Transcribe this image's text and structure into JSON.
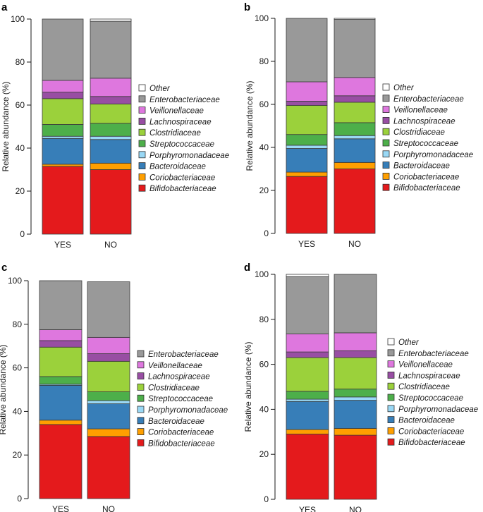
{
  "chart_data": [
    {
      "type": "bar",
      "panel_label": "a",
      "ylabel": "Relative abundance (%)",
      "ylim": [
        0,
        100
      ],
      "yticks": [
        "0",
        "20",
        "40",
        "60",
        "80",
        "100"
      ],
      "categories": [
        "YES",
        "NO"
      ],
      "stacked": true,
      "series": [
        {
          "name": "Bifidobacteriaceae",
          "color": "#e41a1c",
          "values": [
            31.5,
            30
          ]
        },
        {
          "name": "Coriobacteriaceae",
          "color": "#ff9f00",
          "values": [
            1.0,
            3.0
          ]
        },
        {
          "name": "Bacteroidaceae",
          "color": "#377eb8",
          "values": [
            12.0,
            11.0
          ]
        },
        {
          "name": "Porphyromonadaceae",
          "color": "#99d8f5",
          "values": [
            1.0,
            1.5
          ]
        },
        {
          "name": "Streptococcaceae",
          "color": "#4daf4a",
          "values": [
            5.5,
            6.0
          ]
        },
        {
          "name": "Clostridiaceae",
          "color": "#9bd13b",
          "values": [
            12.0,
            9.0
          ]
        },
        {
          "name": "Lachnospiraceae",
          "color": "#984ea3",
          "values": [
            3.0,
            3.5
          ]
        },
        {
          "name": "Veillonellaceae",
          "color": "#de77de",
          "values": [
            5.5,
            8.5
          ]
        },
        {
          "name": "Enterobacteriaceae",
          "color": "#999999",
          "values": [
            28.5,
            26.5
          ]
        },
        {
          "name": "Other",
          "color": "#ffffff",
          "values": [
            0,
            1.0
          ]
        }
      ]
    },
    {
      "type": "bar",
      "panel_label": "b",
      "ylabel": "Relative abundance (%)",
      "ylim": [
        0,
        100
      ],
      "yticks": [
        "0",
        "20",
        "40",
        "60",
        "80",
        "100"
      ],
      "categories": [
        "YES",
        "NO"
      ],
      "stacked": true,
      "series": [
        {
          "name": "Bifidobacteriaceae",
          "color": "#e41a1c",
          "values": [
            26.5,
            30
          ]
        },
        {
          "name": "Coriobacteriaceae",
          "color": "#ff9f00",
          "values": [
            2.0,
            3.0
          ]
        },
        {
          "name": "Bacteroidaceae",
          "color": "#377eb8",
          "values": [
            11.0,
            11.0
          ]
        },
        {
          "name": "Porphyromonadaceae",
          "color": "#99d8f5",
          "values": [
            1.5,
            1.5
          ]
        },
        {
          "name": "Streptococcaceae",
          "color": "#4daf4a",
          "values": [
            5.0,
            6.0
          ]
        },
        {
          "name": "Clostridiaceae",
          "color": "#9bd13b",
          "values": [
            13.5,
            9.5
          ]
        },
        {
          "name": "Lachnospiraceae",
          "color": "#984ea3",
          "values": [
            2.0,
            3.0
          ]
        },
        {
          "name": "Veillonellaceae",
          "color": "#de77de",
          "values": [
            9.0,
            8.5
          ]
        },
        {
          "name": "Enterobacteriaceae",
          "color": "#999999",
          "values": [
            29.5,
            27.0
          ]
        },
        {
          "name": "Other",
          "color": "#ffffff",
          "values": [
            0,
            0.5
          ]
        }
      ]
    },
    {
      "type": "bar",
      "panel_label": "c",
      "ylabel": "Relative abundance (%)",
      "ylim": [
        0,
        100
      ],
      "yticks": [
        "0",
        "20",
        "40",
        "60",
        "80",
        "100"
      ],
      "categories": [
        "YES",
        "NO"
      ],
      "stacked": true,
      "series": [
        {
          "name": "Bifidobacteriaceae",
          "color": "#e41a1c",
          "values": [
            34.0,
            28.5
          ]
        },
        {
          "name": "Coriobacteriaceae",
          "color": "#ff9f00",
          "values": [
            2.0,
            3.5
          ]
        },
        {
          "name": "Bacteroidaceae",
          "color": "#377eb8",
          "values": [
            16.0,
            11.5
          ]
        },
        {
          "name": "Porphyromonadaceae",
          "color": "#99d8f5",
          "values": [
            0.5,
            1.5
          ]
        },
        {
          "name": "Streptococcaceae",
          "color": "#4daf4a",
          "values": [
            3.5,
            4.0
          ]
        },
        {
          "name": "Clostridiaceae",
          "color": "#9bd13b",
          "values": [
            13.5,
            14.0
          ]
        },
        {
          "name": "Lachnospiraceae",
          "color": "#984ea3",
          "values": [
            3.0,
            3.5
          ]
        },
        {
          "name": "Veillonellaceae",
          "color": "#de77de",
          "values": [
            5.0,
            7.5
          ]
        },
        {
          "name": "Enterobacteriaceae",
          "color": "#999999",
          "values": [
            22.5,
            25.5
          ]
        }
      ]
    },
    {
      "type": "bar",
      "panel_label": "d",
      "ylabel": "Relative abundance (%)",
      "ylim": [
        0,
        100
      ],
      "yticks": [
        "0",
        "20",
        "40",
        "60",
        "80",
        "100"
      ],
      "categories": [
        "YES",
        "NO"
      ],
      "stacked": true,
      "series": [
        {
          "name": "Bifidobacteriaceae",
          "color": "#e41a1c",
          "values": [
            29.0,
            28.5
          ]
        },
        {
          "name": "Coriobacteriaceae",
          "color": "#ff9f00",
          "values": [
            2.0,
            3.0
          ]
        },
        {
          "name": "Bacteroidaceae",
          "color": "#377eb8",
          "values": [
            12.5,
            12.5
          ]
        },
        {
          "name": "Porphyromonadaceae",
          "color": "#99d8f5",
          "values": [
            1.0,
            1.5
          ]
        },
        {
          "name": "Streptococcaceae",
          "color": "#4daf4a",
          "values": [
            3.5,
            3.5
          ]
        },
        {
          "name": "Clostridiaceae",
          "color": "#9bd13b",
          "values": [
            15.0,
            14.0
          ]
        },
        {
          "name": "Lachnospiraceae",
          "color": "#984ea3",
          "values": [
            2.5,
            3.0
          ]
        },
        {
          "name": "Veillonellaceae",
          "color": "#de77de",
          "values": [
            8.0,
            8.0
          ]
        },
        {
          "name": "Enterobacteriaceae",
          "color": "#999999",
          "values": [
            25.5,
            26.0
          ]
        },
        {
          "name": "Other",
          "color": "#ffffff",
          "values": [
            1.0,
            0
          ]
        }
      ]
    }
  ]
}
